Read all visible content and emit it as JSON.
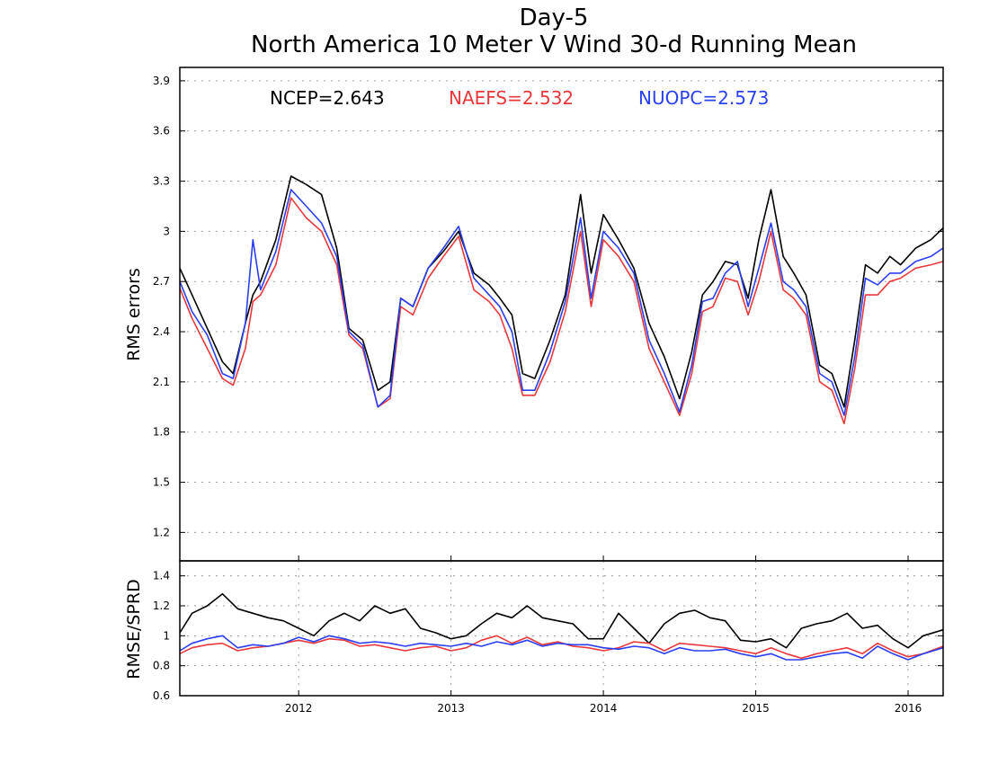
{
  "chart_data": [
    {
      "type": "line",
      "title": "Day-5",
      "subtitle": "North America 10 Meter V Wind 30-d Running Mean",
      "ylabel": "RMS errors",
      "xlabel": "",
      "ylim": [
        1.03,
        3.98
      ],
      "xlim": [
        2011.22,
        2016.23
      ],
      "yticks": [
        "1.2",
        "1.5",
        "1.8",
        "2.1",
        "2.4",
        "2.7",
        "3",
        "3.3",
        "3.6",
        "3.9"
      ],
      "grid": true,
      "legend": [
        {
          "label": "NCEP=2.643",
          "color": "#000000"
        },
        {
          "label": "NAEFS=2.532",
          "color": "#e8383b"
        },
        {
          "label": "NUOPC=2.573",
          "color": "#2a3ff0"
        }
      ],
      "x": [
        2011.22,
        2011.3,
        2011.4,
        2011.5,
        2011.57,
        2011.65,
        2011.7,
        2011.75,
        2011.85,
        2011.95,
        2012.05,
        2012.15,
        2012.25,
        2012.33,
        2012.42,
        2012.52,
        2012.6,
        2012.67,
        2012.75,
        2012.85,
        2012.95,
        2013.05,
        2013.15,
        2013.25,
        2013.32,
        2013.4,
        2013.47,
        2013.55,
        2013.65,
        2013.75,
        2013.85,
        2013.92,
        2014.0,
        2014.1,
        2014.2,
        2014.3,
        2014.4,
        2014.5,
        2014.58,
        2014.65,
        2014.72,
        2014.8,
        2014.88,
        2014.95,
        2015.02,
        2015.1,
        2015.18,
        2015.25,
        2015.33,
        2015.42,
        2015.5,
        2015.58,
        2015.65,
        2015.72,
        2015.8,
        2015.88,
        2015.95,
        2016.05,
        2016.15,
        2016.23
      ],
      "series": [
        {
          "name": "NCEP",
          "color": "#000000",
          "values": [
            2.78,
            2.62,
            2.42,
            2.22,
            2.15,
            2.45,
            2.62,
            2.7,
            2.95,
            3.33,
            3.28,
            3.22,
            2.9,
            2.42,
            2.35,
            2.05,
            2.1,
            2.6,
            2.55,
            2.78,
            2.88,
            3.0,
            2.75,
            2.68,
            2.6,
            2.5,
            2.15,
            2.12,
            2.35,
            2.62,
            3.22,
            2.75,
            3.1,
            2.95,
            2.78,
            2.45,
            2.25,
            2.0,
            2.28,
            2.62,
            2.7,
            2.82,
            2.8,
            2.6,
            2.95,
            3.25,
            2.85,
            2.75,
            2.62,
            2.2,
            2.15,
            1.95,
            2.35,
            2.8,
            2.75,
            2.85,
            2.8,
            2.9,
            2.95,
            3.02
          ]
        },
        {
          "name": "NAEFS",
          "color": "#e8383b",
          "values": [
            2.66,
            2.48,
            2.3,
            2.12,
            2.08,
            2.3,
            2.58,
            2.62,
            2.8,
            3.2,
            3.08,
            3.0,
            2.8,
            2.38,
            2.3,
            1.95,
            2.0,
            2.55,
            2.5,
            2.72,
            2.85,
            2.97,
            2.65,
            2.58,
            2.5,
            2.3,
            2.02,
            2.02,
            2.22,
            2.52,
            3.0,
            2.55,
            2.95,
            2.85,
            2.7,
            2.3,
            2.1,
            1.9,
            2.15,
            2.52,
            2.55,
            2.72,
            2.7,
            2.5,
            2.7,
            3.0,
            2.65,
            2.6,
            2.5,
            2.1,
            2.05,
            1.85,
            2.18,
            2.62,
            2.62,
            2.7,
            2.72,
            2.78,
            2.8,
            2.82
          ]
        },
        {
          "name": "NUOPC",
          "color": "#2a3ff0",
          "values": [
            2.7,
            2.52,
            2.38,
            2.15,
            2.12,
            2.45,
            2.95,
            2.65,
            2.88,
            3.25,
            3.15,
            3.05,
            2.85,
            2.4,
            2.32,
            1.95,
            2.02,
            2.6,
            2.55,
            2.78,
            2.9,
            3.03,
            2.72,
            2.62,
            2.55,
            2.4,
            2.05,
            2.05,
            2.28,
            2.58,
            3.08,
            2.6,
            3.0,
            2.9,
            2.75,
            2.35,
            2.15,
            1.92,
            2.2,
            2.58,
            2.6,
            2.75,
            2.82,
            2.55,
            2.78,
            3.05,
            2.7,
            2.65,
            2.55,
            2.15,
            2.1,
            1.9,
            2.25,
            2.72,
            2.68,
            2.75,
            2.75,
            2.82,
            2.85,
            2.9
          ]
        }
      ]
    },
    {
      "type": "line",
      "title": "",
      "ylabel": "RMSE/SPRD",
      "xlabel": "",
      "ylim": [
        0.6,
        1.5
      ],
      "xlim": [
        2011.22,
        2016.23
      ],
      "yticks": [
        "0.6",
        "0.8",
        "1",
        "1.2",
        "1.4"
      ],
      "xticks": [
        "2012",
        "2013",
        "2014",
        "2015",
        "2016"
      ],
      "grid": true,
      "x": [
        2011.22,
        2011.3,
        2011.4,
        2011.5,
        2011.6,
        2011.7,
        2011.8,
        2011.9,
        2012.0,
        2012.1,
        2012.2,
        2012.3,
        2012.4,
        2012.5,
        2012.6,
        2012.7,
        2012.8,
        2012.9,
        2013.0,
        2013.1,
        2013.2,
        2013.3,
        2013.4,
        2013.5,
        2013.6,
        2013.7,
        2013.8,
        2013.9,
        2014.0,
        2014.1,
        2014.2,
        2014.3,
        2014.4,
        2014.5,
        2014.6,
        2014.7,
        2014.8,
        2014.9,
        2015.0,
        2015.1,
        2015.2,
        2015.3,
        2015.4,
        2015.5,
        2015.6,
        2015.7,
        2015.8,
        2015.9,
        2016.0,
        2016.1,
        2016.23
      ],
      "series": [
        {
          "name": "NCEP",
          "color": "#000000",
          "values": [
            1.02,
            1.15,
            1.2,
            1.28,
            1.18,
            1.15,
            1.12,
            1.1,
            1.05,
            1.0,
            1.1,
            1.15,
            1.1,
            1.2,
            1.15,
            1.18,
            1.05,
            1.02,
            0.98,
            1.0,
            1.08,
            1.15,
            1.12,
            1.2,
            1.12,
            1.1,
            1.08,
            0.98,
            0.98,
            1.15,
            1.05,
            0.95,
            1.08,
            1.15,
            1.17,
            1.12,
            1.1,
            0.97,
            0.96,
            0.98,
            0.92,
            1.05,
            1.08,
            1.1,
            1.15,
            1.05,
            1.07,
            0.98,
            0.92,
            1.0,
            1.04
          ]
        },
        {
          "name": "NAEFS",
          "color": "#e8383b",
          "values": [
            0.88,
            0.92,
            0.94,
            0.95,
            0.9,
            0.92,
            0.93,
            0.95,
            0.97,
            0.95,
            0.98,
            0.97,
            0.93,
            0.94,
            0.92,
            0.9,
            0.92,
            0.93,
            0.9,
            0.92,
            0.97,
            1.0,
            0.95,
            0.99,
            0.94,
            0.96,
            0.93,
            0.92,
            0.9,
            0.92,
            0.96,
            0.95,
            0.9,
            0.95,
            0.94,
            0.93,
            0.92,
            0.9,
            0.88,
            0.92,
            0.88,
            0.85,
            0.88,
            0.9,
            0.92,
            0.88,
            0.95,
            0.9,
            0.86,
            0.88,
            0.93
          ]
        },
        {
          "name": "NUOPC",
          "color": "#2a3ff0",
          "values": [
            0.9,
            0.95,
            0.98,
            1.0,
            0.92,
            0.94,
            0.93,
            0.95,
            0.99,
            0.96,
            1.0,
            0.98,
            0.95,
            0.96,
            0.95,
            0.93,
            0.95,
            0.94,
            0.93,
            0.95,
            0.93,
            0.96,
            0.94,
            0.97,
            0.93,
            0.95,
            0.94,
            0.94,
            0.92,
            0.91,
            0.93,
            0.92,
            0.88,
            0.92,
            0.9,
            0.9,
            0.91,
            0.88,
            0.86,
            0.88,
            0.84,
            0.84,
            0.86,
            0.88,
            0.89,
            0.85,
            0.93,
            0.88,
            0.84,
            0.88,
            0.92
          ]
        }
      ]
    }
  ]
}
